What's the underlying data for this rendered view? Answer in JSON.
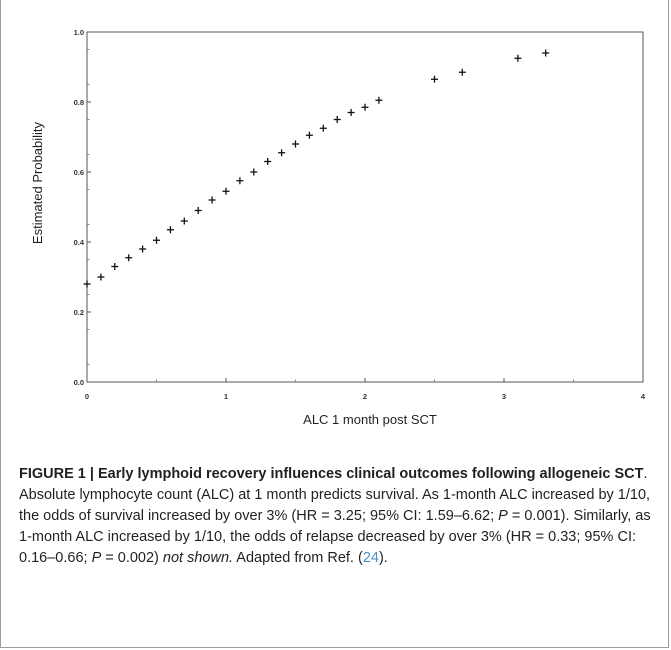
{
  "chart_data": {
    "type": "scatter",
    "xlabel": "ALC 1 month post SCT",
    "ylabel": "Estimated Probability",
    "xlim": [
      0,
      4
    ],
    "ylim": [
      0,
      1
    ],
    "x_ticks": [
      0,
      1,
      2,
      3,
      4
    ],
    "y_ticks": [
      0.0,
      0.2,
      0.4,
      0.6,
      0.8,
      1.0
    ],
    "y_tick_labels": [
      "0.0",
      "0.2",
      "0.4",
      "0.6",
      "0.8",
      "1.0"
    ],
    "marker": "plus",
    "grid": false,
    "x": [
      0.0,
      0.1,
      0.2,
      0.3,
      0.4,
      0.5,
      0.6,
      0.7,
      0.8,
      0.9,
      1.0,
      1.1,
      1.2,
      1.3,
      1.4,
      1.5,
      1.6,
      1.7,
      1.8,
      1.9,
      2.0,
      2.1,
      2.5,
      2.7,
      3.1,
      3.3
    ],
    "y": [
      0.28,
      0.3,
      0.33,
      0.355,
      0.38,
      0.405,
      0.435,
      0.46,
      0.49,
      0.52,
      0.545,
      0.575,
      0.6,
      0.63,
      0.655,
      0.68,
      0.705,
      0.725,
      0.75,
      0.77,
      0.785,
      0.805,
      0.865,
      0.885,
      0.925,
      0.94
    ]
  },
  "caption": {
    "heading": "FIGURE 1 | Early lymphoid recovery influences clinical outcomes following allogeneic SCT",
    "body_1": ". Absolute lymphocyte count (ALC) at 1 month predicts survival. As 1-month ALC increased by 1/10, the odds of survival increased by over 3% (HR = 3.25; 95% CI: 1.59–6.62; ",
    "p_label_1": "P",
    "body_2": " = 0.001). Similarly, as 1-month ALC increased by 1/10, the odds of relapse decreased by over 3% (HR = 0.33; 95% CI: 0.16–0.66; ",
    "p_label_2": "P",
    "body_3": " = 0.002) ",
    "not_shown": "not shown.",
    "body_4": " Adapted from Ref. (",
    "ref_number": "24",
    "body_5": ")."
  }
}
